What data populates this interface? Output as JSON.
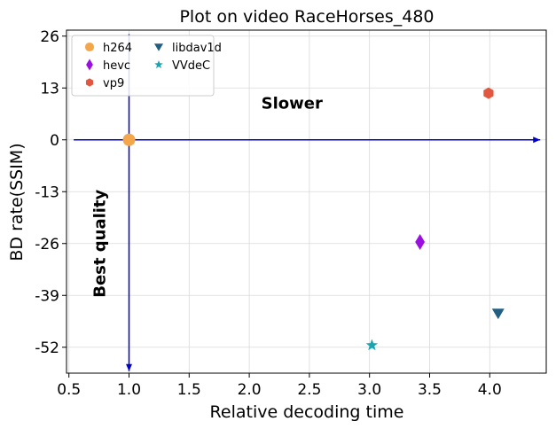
{
  "chart_data": {
    "type": "scatter",
    "title": "Plot on video RaceHorses_480",
    "xlabel": "Relative decoding time",
    "ylabel": "BD rate(SSIM)",
    "xlim": [
      0.48,
      4.47
    ],
    "ylim": [
      -58.5,
      27.5
    ],
    "x_ticks": [
      0.5,
      1.0,
      1.5,
      2.0,
      2.5,
      3.0,
      3.5,
      4.0
    ],
    "x_tick_labels": [
      "0.5",
      "1.0",
      "1.5",
      "2.0",
      "2.5",
      "3.0",
      "3.5",
      "4.0"
    ],
    "y_ticks": [
      26,
      13,
      0,
      -13,
      -26,
      -39,
      -52
    ],
    "y_tick_labels": [
      "26",
      "13",
      "0",
      "-13",
      "-26",
      "-39",
      "-52"
    ],
    "grid": true,
    "legend_position": "top-left",
    "series": [
      {
        "name": "h264",
        "marker": "circle",
        "color": "#f4a64a",
        "x": 1.0,
        "y": 0.0
      },
      {
        "name": "hevc",
        "marker": "thin-diamond",
        "color": "#9b10e0",
        "x": 3.42,
        "y": -25.6
      },
      {
        "name": "vp9",
        "marker": "hexagon",
        "color": "#e2573f",
        "x": 3.99,
        "y": 11.7
      },
      {
        "name": "libdav1d",
        "marker": "triangle-down",
        "color": "#235f82",
        "x": 4.07,
        "y": -43.5
      },
      {
        "name": "VVdeC",
        "marker": "star",
        "color": "#1aa4b0",
        "x": 3.02,
        "y": -51.5
      }
    ],
    "annotations": [
      {
        "text": "Slower",
        "x": 2.1,
        "y": 7.8,
        "rotation": 0
      },
      {
        "text": "Best quality",
        "x": 0.8,
        "y": -26,
        "rotation": -90
      }
    ],
    "arrows": [
      {
        "from": [
          0.54,
          0.0
        ],
        "to": [
          4.42,
          0.0
        ],
        "color": "#0000cc"
      },
      {
        "from": [
          1.0,
          26.5
        ],
        "to": [
          1.0,
          -58.0
        ],
        "color": "#0000cc"
      }
    ]
  }
}
